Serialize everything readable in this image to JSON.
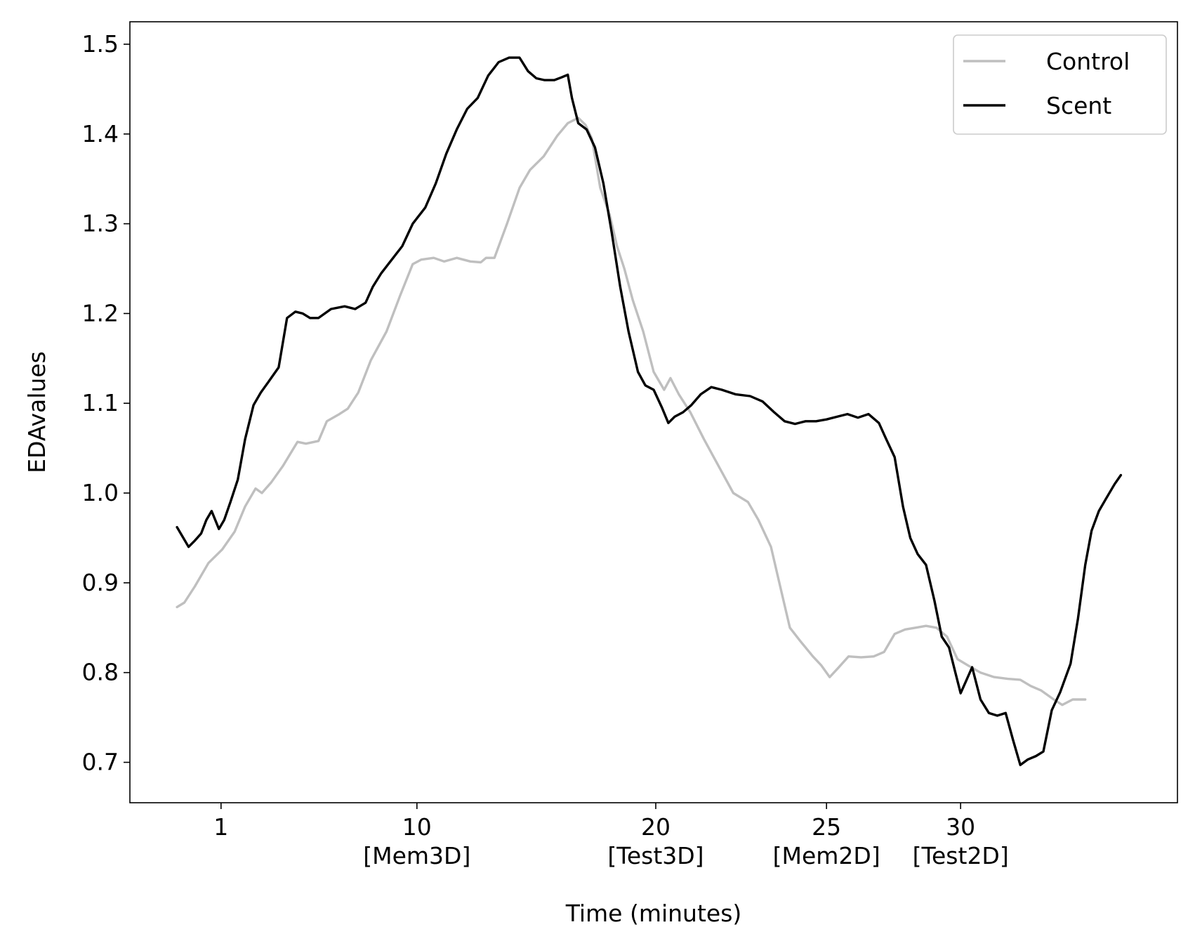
{
  "chart_data": {
    "type": "line",
    "title": "",
    "xlabel": "Time (minutes)",
    "ylabel": "EDAvalues",
    "xlim": [
      0,
      1
    ],
    "ylim": [
      0.655,
      1.525
    ],
    "x_ticks": [
      {
        "pos": 0.087,
        "line1": "1",
        "line2": ""
      },
      {
        "pos": 0.274,
        "line1": "10",
        "line2": "[Mem3D]"
      },
      {
        "pos": 0.502,
        "line1": "20",
        "line2": "[Test3D]"
      },
      {
        "pos": 0.665,
        "line1": "25",
        "line2": "[Mem2D]"
      },
      {
        "pos": 0.793,
        "line1": "30",
        "line2": "[Test2D]"
      }
    ],
    "y_ticks": [
      {
        "value": 0.7,
        "label": "0.7"
      },
      {
        "value": 0.8,
        "label": "0.8"
      },
      {
        "value": 0.9,
        "label": "0.9"
      },
      {
        "value": 1.0,
        "label": "1.0"
      },
      {
        "value": 1.1,
        "label": "1.1"
      },
      {
        "value": 1.2,
        "label": "1.2"
      },
      {
        "value": 1.3,
        "label": "1.3"
      },
      {
        "value": 1.4,
        "label": "1.4"
      },
      {
        "value": 1.5,
        "label": "1.5"
      }
    ],
    "grid": false,
    "legend_position": "top-right",
    "series": [
      {
        "name": "Control",
        "color": "#bfbfbf",
        "points": [
          [
            0.045,
            0.873
          ],
          [
            0.052,
            0.878
          ],
          [
            0.062,
            0.896
          ],
          [
            0.075,
            0.922
          ],
          [
            0.088,
            0.937
          ],
          [
            0.1,
            0.957
          ],
          [
            0.11,
            0.985
          ],
          [
            0.12,
            1.005
          ],
          [
            0.126,
            1.0
          ],
          [
            0.135,
            1.012
          ],
          [
            0.146,
            1.03
          ],
          [
            0.16,
            1.057
          ],
          [
            0.168,
            1.055
          ],
          [
            0.18,
            1.058
          ],
          [
            0.188,
            1.08
          ],
          [
            0.2,
            1.088
          ],
          [
            0.208,
            1.094
          ],
          [
            0.218,
            1.112
          ],
          [
            0.23,
            1.148
          ],
          [
            0.245,
            1.18
          ],
          [
            0.258,
            1.22
          ],
          [
            0.27,
            1.255
          ],
          [
            0.278,
            1.26
          ],
          [
            0.29,
            1.262
          ],
          [
            0.3,
            1.258
          ],
          [
            0.312,
            1.262
          ],
          [
            0.325,
            1.258
          ],
          [
            0.335,
            1.257
          ],
          [
            0.34,
            1.262
          ],
          [
            0.348,
            1.262
          ],
          [
            0.36,
            1.3
          ],
          [
            0.372,
            1.34
          ],
          [
            0.382,
            1.36
          ],
          [
            0.395,
            1.375
          ],
          [
            0.408,
            1.398
          ],
          [
            0.418,
            1.412
          ],
          [
            0.428,
            1.418
          ],
          [
            0.435,
            1.41
          ],
          [
            0.441,
            1.395
          ],
          [
            0.449,
            1.34
          ],
          [
            0.458,
            1.31
          ],
          [
            0.465,
            1.275
          ],
          [
            0.472,
            1.25
          ],
          [
            0.48,
            1.215
          ],
          [
            0.49,
            1.18
          ],
          [
            0.5,
            1.135
          ],
          [
            0.51,
            1.115
          ],
          [
            0.516,
            1.128
          ],
          [
            0.524,
            1.11
          ],
          [
            0.535,
            1.09
          ],
          [
            0.548,
            1.06
          ],
          [
            0.562,
            1.03
          ],
          [
            0.576,
            1.0
          ],
          [
            0.59,
            0.99
          ],
          [
            0.6,
            0.97
          ],
          [
            0.612,
            0.94
          ],
          [
            0.62,
            0.9
          ],
          [
            0.63,
            0.85
          ],
          [
            0.64,
            0.835
          ],
          [
            0.652,
            0.818
          ],
          [
            0.66,
            0.808
          ],
          [
            0.668,
            0.795
          ],
          [
            0.676,
            0.805
          ],
          [
            0.686,
            0.818
          ],
          [
            0.698,
            0.817
          ],
          [
            0.71,
            0.818
          ],
          [
            0.72,
            0.823
          ],
          [
            0.73,
            0.843
          ],
          [
            0.74,
            0.848
          ],
          [
            0.75,
            0.85
          ],
          [
            0.76,
            0.852
          ],
          [
            0.77,
            0.85
          ],
          [
            0.78,
            0.84
          ],
          [
            0.79,
            0.815
          ],
          [
            0.8,
            0.808
          ],
          [
            0.812,
            0.8
          ],
          [
            0.825,
            0.795
          ],
          [
            0.838,
            0.793
          ],
          [
            0.85,
            0.792
          ],
          [
            0.86,
            0.785
          ],
          [
            0.87,
            0.78
          ],
          [
            0.882,
            0.77
          ],
          [
            0.89,
            0.764
          ],
          [
            0.9,
            0.77
          ],
          [
            0.912,
            0.77
          ]
        ]
      },
      {
        "name": "Scent",
        "color": "#000000",
        "points": [
          [
            0.045,
            0.962
          ],
          [
            0.05,
            0.952
          ],
          [
            0.056,
            0.94
          ],
          [
            0.062,
            0.947
          ],
          [
            0.068,
            0.955
          ],
          [
            0.073,
            0.97
          ],
          [
            0.078,
            0.98
          ],
          [
            0.085,
            0.96
          ],
          [
            0.09,
            0.97
          ],
          [
            0.096,
            0.99
          ],
          [
            0.103,
            1.015
          ],
          [
            0.11,
            1.06
          ],
          [
            0.118,
            1.098
          ],
          [
            0.125,
            1.112
          ],
          [
            0.133,
            1.125
          ],
          [
            0.142,
            1.14
          ],
          [
            0.15,
            1.195
          ],
          [
            0.158,
            1.202
          ],
          [
            0.165,
            1.2
          ],
          [
            0.172,
            1.195
          ],
          [
            0.18,
            1.195
          ],
          [
            0.192,
            1.205
          ],
          [
            0.205,
            1.208
          ],
          [
            0.215,
            1.205
          ],
          [
            0.225,
            1.212
          ],
          [
            0.232,
            1.23
          ],
          [
            0.24,
            1.245
          ],
          [
            0.25,
            1.26
          ],
          [
            0.26,
            1.275
          ],
          [
            0.27,
            1.3
          ],
          [
            0.282,
            1.318
          ],
          [
            0.292,
            1.345
          ],
          [
            0.302,
            1.378
          ],
          [
            0.312,
            1.405
          ],
          [
            0.322,
            1.428
          ],
          [
            0.332,
            1.44
          ],
          [
            0.342,
            1.465
          ],
          [
            0.352,
            1.48
          ],
          [
            0.362,
            1.485
          ],
          [
            0.372,
            1.485
          ],
          [
            0.38,
            1.47
          ],
          [
            0.388,
            1.462
          ],
          [
            0.396,
            1.46
          ],
          [
            0.405,
            1.46
          ],
          [
            0.412,
            1.463
          ],
          [
            0.418,
            1.466
          ],
          [
            0.422,
            1.44
          ],
          [
            0.428,
            1.412
          ],
          [
            0.436,
            1.405
          ],
          [
            0.444,
            1.385
          ],
          [
            0.452,
            1.345
          ],
          [
            0.46,
            1.29
          ],
          [
            0.468,
            1.23
          ],
          [
            0.476,
            1.18
          ],
          [
            0.485,
            1.135
          ],
          [
            0.492,
            1.12
          ],
          [
            0.5,
            1.115
          ],
          [
            0.508,
            1.095
          ],
          [
            0.514,
            1.078
          ],
          [
            0.52,
            1.085
          ],
          [
            0.528,
            1.09
          ],
          [
            0.536,
            1.098
          ],
          [
            0.545,
            1.11
          ],
          [
            0.555,
            1.118
          ],
          [
            0.565,
            1.115
          ],
          [
            0.578,
            1.11
          ],
          [
            0.592,
            1.108
          ],
          [
            0.604,
            1.102
          ],
          [
            0.615,
            1.09
          ],
          [
            0.625,
            1.08
          ],
          [
            0.635,
            1.077
          ],
          [
            0.645,
            1.08
          ],
          [
            0.655,
            1.08
          ],
          [
            0.665,
            1.082
          ],
          [
            0.675,
            1.085
          ],
          [
            0.685,
            1.088
          ],
          [
            0.695,
            1.084
          ],
          [
            0.705,
            1.088
          ],
          [
            0.715,
            1.078
          ],
          [
            0.722,
            1.06
          ],
          [
            0.73,
            1.04
          ],
          [
            0.738,
            0.985
          ],
          [
            0.745,
            0.95
          ],
          [
            0.752,
            0.932
          ],
          [
            0.76,
            0.92
          ],
          [
            0.768,
            0.88
          ],
          [
            0.775,
            0.84
          ],
          [
            0.782,
            0.828
          ],
          [
            0.788,
            0.8
          ],
          [
            0.793,
            0.777
          ],
          [
            0.798,
            0.79
          ],
          [
            0.804,
            0.806
          ],
          [
            0.812,
            0.77
          ],
          [
            0.82,
            0.755
          ],
          [
            0.828,
            0.752
          ],
          [
            0.836,
            0.755
          ],
          [
            0.843,
            0.725
          ],
          [
            0.85,
            0.697
          ],
          [
            0.857,
            0.703
          ],
          [
            0.865,
            0.707
          ],
          [
            0.872,
            0.712
          ],
          [
            0.88,
            0.758
          ],
          [
            0.888,
            0.778
          ],
          [
            0.898,
            0.81
          ],
          [
            0.905,
            0.86
          ],
          [
            0.912,
            0.92
          ],
          [
            0.918,
            0.958
          ],
          [
            0.925,
            0.98
          ],
          [
            0.932,
            0.994
          ],
          [
            0.94,
            1.01
          ],
          [
            0.946,
            1.02
          ]
        ]
      }
    ]
  }
}
